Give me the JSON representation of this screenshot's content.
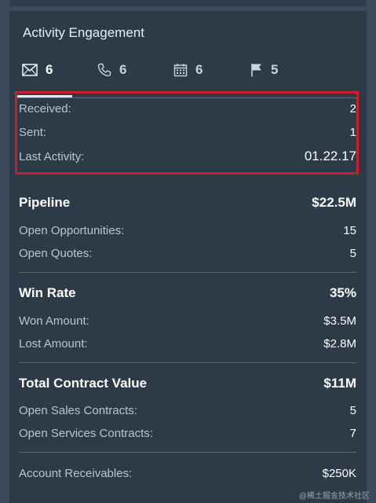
{
  "card": {
    "title": "Activity Engagement"
  },
  "tabs": [
    {
      "icon": "envelope-icon",
      "count": "6",
      "active": true
    },
    {
      "icon": "phone-icon",
      "count": "6",
      "active": false
    },
    {
      "icon": "calendar-icon",
      "count": "6",
      "active": false
    },
    {
      "icon": "flag-icon",
      "count": "5",
      "active": false
    }
  ],
  "activity": {
    "received_label": "Received:",
    "received_value": "2",
    "sent_label": "Sent:",
    "sent_value": "1",
    "last_label": "Last Activity:",
    "last_value": "01.22.17"
  },
  "pipeline": {
    "title": "Pipeline",
    "total": "$22.5M",
    "opps_label": "Open Opportunities:",
    "opps_value": "15",
    "quotes_label": "Open Quotes:",
    "quotes_value": "5"
  },
  "win_rate": {
    "title": "Win Rate",
    "total": "35%",
    "won_label": "Won Amount:",
    "won_value": "$3.5M",
    "lost_label": "Lost Amount:",
    "lost_value": "$2.8M"
  },
  "contract": {
    "title": "Total Contract Value",
    "total": "$11M",
    "sales_label": "Open Sales Contracts:",
    "sales_value": "5",
    "services_label": "Open Services Contracts:",
    "services_value": "7"
  },
  "receivables": {
    "label": "Account Receivables:",
    "value": "$250K"
  },
  "watermark": "@稀土掘金技术社区",
  "colors": {
    "highlight": "#c8202b",
    "card_bg": "#2d3b48",
    "page_bg": "#3a4a5a"
  }
}
